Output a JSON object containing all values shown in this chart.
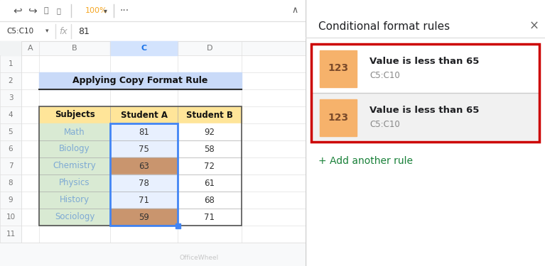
{
  "cell_ref": "C5:C10",
  "formula_bar_value": "81",
  "title": "Applying Copy Format Rule",
  "title_bg": "#c9daf8",
  "header_bg": "#ffe599",
  "subjects": [
    "Math",
    "Biology",
    "Chemistry",
    "Physics",
    "History",
    "Sociology"
  ],
  "student_a": [
    81,
    75,
    63,
    78,
    71,
    59
  ],
  "student_b": [
    92,
    58,
    72,
    61,
    68,
    71
  ],
  "subject_bg": "#d9ead3",
  "subject_text": "#7eaad4",
  "cell_normal_bg": "#e8f0fe",
  "cell_highlight_bg": "#c9956e",
  "cell_selected_border": "#4285f4",
  "panel_title": "Conditional format rules",
  "rule_title": "Value is less than 65",
  "rule_range": "C5:C10",
  "rule_icon_bg": "#f6b26b",
  "rule_icon_text": "123",
  "rule1_bg": "#ffffff",
  "rule2_bg": "#f1f1f1",
  "red_border_color": "#cc0000",
  "add_rule_text": "+ Add another rule",
  "add_rule_color": "#188038",
  "watermark": "OfficeWheel",
  "sheet_bg": "#f8f9fa",
  "grid_line_color": "#e0e0e0",
  "row_num_bg": "#f8f9fa",
  "col_header_bg": "#f8f9fa",
  "col_header_selected_bg": "#d3e3fd",
  "col_header_selected_text": "#1a73e8"
}
